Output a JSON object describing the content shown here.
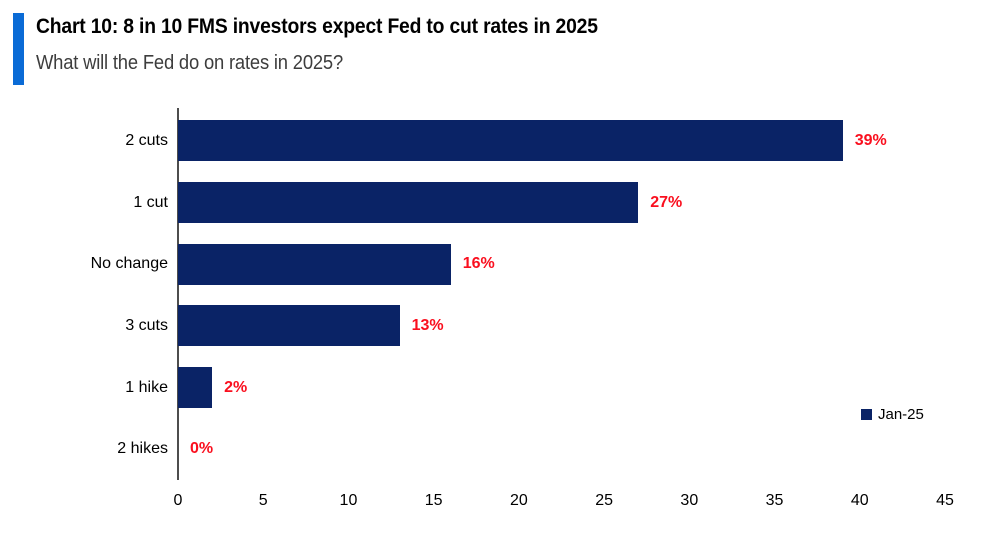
{
  "header": {
    "title": "Chart 10: 8 in 10 FMS investors expect Fed to cut rates in 2025",
    "subtitle": "What will the Fed do on rates in 2025?",
    "accent_color": "#0A6BD6"
  },
  "chart_data": {
    "type": "bar",
    "orientation": "horizontal",
    "title": "Chart 10: 8 in 10 FMS investors expect Fed to cut rates in 2025",
    "subtitle": "What will the Fed do on rates in 2025?",
    "categories": [
      "2 cuts",
      "1 cut",
      "No change",
      "3 cuts",
      "1 hike",
      "2 hikes"
    ],
    "values": [
      39,
      27,
      16,
      13,
      2,
      0
    ],
    "value_labels": [
      "39%",
      "27%",
      "16%",
      "13%",
      "2%",
      "0%"
    ],
    "x_ticks": [
      "0",
      "5",
      "10",
      "15",
      "20",
      "25",
      "30",
      "35",
      "40",
      "45"
    ],
    "xlim": [
      0,
      45
    ],
    "grid": false,
    "bar_color": "#0A2366",
    "value_label_color": "#FA0F1E",
    "axis_line_color": "#4d4d4d",
    "legend": [
      {
        "label": "Jan-25",
        "color": "#0A2366"
      }
    ],
    "legend_position": "right-middle"
  }
}
